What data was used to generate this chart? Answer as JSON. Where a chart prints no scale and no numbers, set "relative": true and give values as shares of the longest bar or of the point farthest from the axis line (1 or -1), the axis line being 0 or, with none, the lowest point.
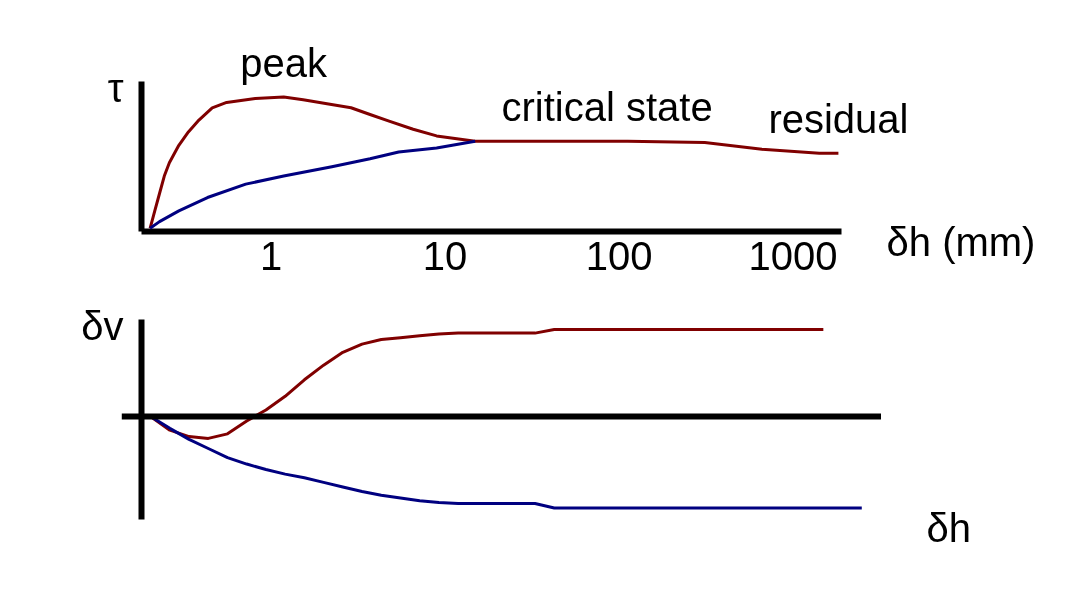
{
  "chart_data": [
    {
      "type": "line",
      "ylabel": "τ",
      "xlabel": "δh (mm)",
      "log": "x",
      "relative": true,
      "xlim": [
        0.18,
        1900
      ],
      "xticks": [
        1,
        10,
        100,
        1000
      ],
      "annotations": [
        {
          "text": "peak",
          "x": 1.19,
          "y": 1.0
        },
        {
          "text": "critical state",
          "x": 86,
          "y": 0.67
        },
        {
          "text": "residual",
          "x": 1836,
          "y": 0.58
        }
      ],
      "series": [
        {
          "color": "#800000",
          "x": [
            0.203,
            0.216,
            0.23,
            0.245,
            0.262,
            0.297,
            0.337,
            0.382,
            0.462,
            0.559,
            0.817,
            1.19,
            1.54,
            2.11,
            2.9,
            3.73,
            4.8,
            6.6,
            9.0,
            15,
            113,
            313,
            667,
            1426,
            1836
          ],
          "values": [
            0.02,
            0.15,
            0.28,
            0.41,
            0.51,
            0.64,
            0.74,
            0.82,
            0.92,
            0.96,
            0.99,
            1.0,
            0.98,
            0.95,
            0.92,
            0.87,
            0.82,
            0.76,
            0.71,
            0.67,
            0.67,
            0.66,
            0.61,
            0.58,
            0.58
          ]
        },
        {
          "color": "#000080",
          "x": [
            0.203,
            0.23,
            0.297,
            0.434,
            0.72,
            1.19,
            2.25,
            3.73,
            5.45,
            9.0,
            15
          ],
          "values": [
            0.02,
            0.07,
            0.15,
            0.25,
            0.35,
            0.41,
            0.48,
            0.54,
            0.59,
            0.62,
            0.67
          ]
        }
      ]
    },
    {
      "type": "line",
      "ylabel": "δv",
      "xlabel": "δh",
      "relative": true,
      "categories": [
        null,
        null,
        null,
        null,
        null,
        null,
        null,
        null,
        null,
        null,
        null,
        null,
        null,
        null,
        null,
        null,
        null,
        null,
        null,
        null,
        null,
        null,
        null,
        null,
        null,
        null,
        null,
        null,
        null,
        null,
        null,
        null,
        null,
        null,
        null,
        null,
        null,
        null
      ],
      "series": [
        {
          "color": "#800000",
          "values": [
            0,
            -0.15,
            -0.22,
            -0.24,
            -0.19,
            -0.05,
            0.07,
            0.22,
            0.4,
            0.56,
            0.7,
            0.79,
            0.84,
            0.86,
            0.88,
            0.9,
            0.91,
            0.91,
            0.91,
            0.91,
            0.91,
            0.95,
            0.95,
            0.95,
            0.95,
            0.95,
            0.95,
            0.95,
            0.95,
            0.95,
            0.95,
            0.95,
            0.95,
            0.95,
            0.95,
            0.95,
            null,
            null
          ]
        },
        {
          "color": "#000080",
          "values": [
            0,
            -0.13,
            -0.25,
            -0.35,
            -0.45,
            -0.52,
            -0.58,
            -0.63,
            -0.67,
            -0.72,
            -0.77,
            -0.82,
            -0.86,
            -0.89,
            -0.92,
            -0.94,
            -0.95,
            -0.95,
            -0.95,
            -0.95,
            -0.95,
            -1,
            -1,
            -1,
            -1,
            -1,
            -1,
            -1,
            -1,
            -1,
            -1,
            -1,
            -1,
            -1,
            -1,
            -1,
            -1,
            -1
          ]
        }
      ]
    }
  ]
}
